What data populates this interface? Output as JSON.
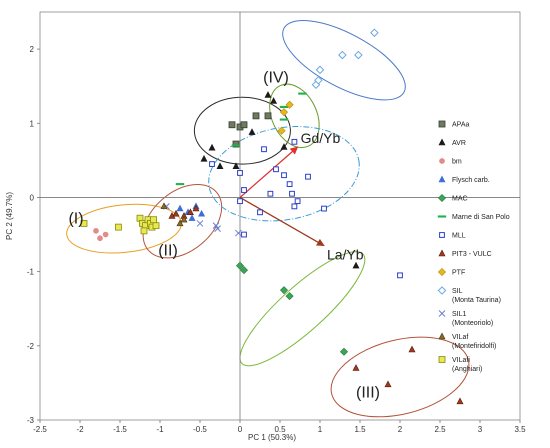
{
  "chart_data": {
    "type": "scatter",
    "xlabel": "PC 1 (50.3%)",
    "ylabel": "PC 2 (49.7%)",
    "xlim": [
      -2.5,
      3.5
    ],
    "ylim": [
      -3,
      2.5
    ],
    "x_ticks": [
      "-2.5",
      "-2",
      "-1.5",
      "-1",
      "-0.5",
      "0",
      "0.5",
      "1",
      "1.5",
      "2",
      "2.5",
      "3",
      "3.5"
    ],
    "y_ticks": [
      "-3",
      "-2",
      "-1",
      "0",
      "1",
      "2"
    ],
    "x_tick_values": [
      -2.5,
      -2,
      -1.5,
      -1,
      -0.5,
      0,
      0.5,
      1,
      1.5,
      2,
      2.5,
      3,
      3.5
    ],
    "y_tick_values": [
      -3,
      -2,
      -1,
      0,
      1,
      2
    ],
    "grid": false,
    "legend_position": "right",
    "series": [
      {
        "name": "APAa",
        "marker": "square",
        "color": "#6b7d5a",
        "edge": "#3a3a3a",
        "points": [
          [
            -0.1,
            0.98
          ],
          [
            0.0,
            0.95
          ],
          [
            0.05,
            0.98
          ],
          [
            -0.05,
            0.72
          ],
          [
            0.2,
            1.1
          ],
          [
            0.35,
            1.1
          ]
        ]
      },
      {
        "name": "AVR",
        "marker": "triangle",
        "color": "#1a1a1a",
        "edge": "#1a1a1a",
        "points": [
          [
            -0.45,
            0.52
          ],
          [
            -0.35,
            0.67
          ],
          [
            -0.25,
            0.42
          ],
          [
            -0.05,
            0.42
          ],
          [
            0.15,
            0.88
          ],
          [
            0.35,
            1.38
          ],
          [
            0.42,
            1.3
          ],
          [
            1.45,
            -0.92
          ],
          [
            0.55,
            0.68
          ]
        ]
      },
      {
        "name": "bm",
        "marker": "circle",
        "color": "#e38a8a",
        "edge": "#e38a8a",
        "points": [
          [
            -1.8,
            -0.45
          ],
          [
            -1.75,
            -0.55
          ],
          [
            -1.68,
            -0.5
          ]
        ]
      },
      {
        "name": "Flysch carb.",
        "marker": "triangle",
        "color": "#3d6fd6",
        "edge": "#3d6fd6",
        "points": [
          [
            -0.75,
            -0.15
          ],
          [
            -0.65,
            -0.2
          ],
          [
            -0.6,
            -0.28
          ],
          [
            -0.55,
            -0.12
          ],
          [
            -0.48,
            -0.22
          ]
        ]
      },
      {
        "name": "MAC",
        "marker": "diamond",
        "color": "#3aa655",
        "edge": "#2d7a40",
        "points": [
          [
            0.0,
            -0.92
          ],
          [
            0.05,
            -0.98
          ],
          [
            0.55,
            -1.25
          ],
          [
            0.62,
            -1.33
          ],
          [
            1.3,
            -2.08
          ]
        ]
      },
      {
        "name": "Marne di San Polo",
        "marker": "dash",
        "color": "#22b24c",
        "edge": "#22b24c",
        "points": [
          [
            -0.75,
            0.18
          ],
          [
            -0.05,
            0.7
          ],
          [
            0.55,
            1.05
          ],
          [
            0.55,
            1.22
          ],
          [
            0.78,
            1.4
          ]
        ]
      },
      {
        "name": "MLL",
        "marker": "open-square",
        "color": "#2b3fc9",
        "edge": "#2b3fc9",
        "points": [
          [
            -0.35,
            0.45
          ],
          [
            0.0,
            0.33
          ],
          [
            0.05,
            0.1
          ],
          [
            0.0,
            -0.05
          ],
          [
            0.3,
            0.65
          ],
          [
            0.45,
            0.38
          ],
          [
            0.55,
            0.3
          ],
          [
            0.62,
            0.18
          ],
          [
            0.38,
            0.05
          ],
          [
            0.65,
            0.05
          ],
          [
            0.72,
            -0.05
          ],
          [
            0.68,
            0.75
          ],
          [
            0.85,
            0.28
          ],
          [
            0.68,
            -0.12
          ],
          [
            0.25,
            -0.2
          ],
          [
            0.05,
            -0.5
          ],
          [
            1.05,
            -0.15
          ],
          [
            2.0,
            -1.05
          ]
        ]
      },
      {
        "name": "PIT3 - VULC",
        "marker": "triangle",
        "color": "#a0391e",
        "edge": "#5a1a0c",
        "points": [
          [
            -0.85,
            -0.25
          ],
          [
            -0.8,
            -0.22
          ],
          [
            -0.7,
            -0.25
          ],
          [
            -0.62,
            -0.2
          ],
          [
            -0.55,
            -0.15
          ],
          [
            1.45,
            -2.3
          ],
          [
            2.15,
            -2.05
          ],
          [
            1.85,
            -2.52
          ],
          [
            2.75,
            -2.75
          ]
        ]
      },
      {
        "name": "PTF",
        "marker": "diamond",
        "color": "#e6b820",
        "edge": "#b88a00",
        "points": [
          [
            0.55,
            1.15
          ],
          [
            0.62,
            1.25
          ],
          [
            0.52,
            0.9
          ]
        ]
      },
      {
        "name": "SIL\n(Monta Taurina)",
        "marker": "open-diamond",
        "color": "#6aa8df",
        "edge": "#6aa8df",
        "points": [
          [
            0.95,
            1.52
          ],
          [
            1.0,
            1.72
          ],
          [
            1.28,
            1.92
          ],
          [
            1.48,
            1.92
          ],
          [
            1.68,
            2.22
          ],
          [
            0.98,
            1.58
          ]
        ]
      },
      {
        "name": "SIL1\n(Monteoriolo)",
        "marker": "x",
        "color": "#6a7fd6",
        "edge": "#6a7fd6",
        "points": [
          [
            -0.3,
            -0.38
          ],
          [
            -0.28,
            -0.42
          ],
          [
            -0.92,
            -0.12
          ],
          [
            -0.5,
            -0.35
          ],
          [
            -0.02,
            -0.48
          ]
        ]
      },
      {
        "name": "VILaf\n(Montefiridolfi)",
        "marker": "triangle",
        "color": "#8a6a2a",
        "edge": "#4a3810",
        "points": [
          [
            -0.95,
            -0.12
          ],
          [
            -0.75,
            -0.35
          ],
          [
            -0.7,
            -0.3
          ]
        ]
      },
      {
        "name": "VILafi\n(Anghiari)",
        "marker": "square",
        "color": "#e8e850",
        "edge": "#8a8a10",
        "points": [
          [
            -1.95,
            -0.35
          ],
          [
            -1.52,
            -0.4
          ],
          [
            -1.25,
            -0.28
          ],
          [
            -1.22,
            -0.35
          ],
          [
            -1.18,
            -0.38
          ],
          [
            -1.15,
            -0.3
          ],
          [
            -1.12,
            -0.35
          ],
          [
            -1.1,
            -0.4
          ],
          [
            -1.05,
            -0.38
          ],
          [
            -1.2,
            -0.45
          ],
          [
            -1.08,
            -0.3
          ]
        ]
      }
    ],
    "vectors": [
      {
        "label": "Gd/Yb",
        "from": [
          0.0,
          0.0
        ],
        "to": [
          0.72,
          0.68
        ],
        "color": "#e03030"
      },
      {
        "label": "La/Yb",
        "from": [
          0.0,
          0.0
        ],
        "to": [
          1.05,
          -0.65
        ],
        "color": "#a0391e"
      }
    ],
    "group_labels": [
      {
        "label": "(I)",
        "at": [
          -2.05,
          -0.35
        ]
      },
      {
        "label": "(II)",
        "at": [
          -0.9,
          -0.78
        ]
      },
      {
        "label": "(III)",
        "at": [
          1.6,
          -2.7
        ]
      },
      {
        "label": "(IV)",
        "at": [
          0.45,
          1.55
        ]
      }
    ],
    "ellipses": [
      {
        "color": "#e8a020",
        "cx": -1.45,
        "cy": -0.42,
        "rx": 0.72,
        "ry": 0.32,
        "angle": -6,
        "dash": false
      },
      {
        "color": "#b5533a",
        "cx": -0.72,
        "cy": -0.32,
        "rx": 0.56,
        "ry": 0.4,
        "angle": -40,
        "dash": false
      },
      {
        "color": "#2a2a2a",
        "cx": 0.03,
        "cy": 0.9,
        "rx": 0.6,
        "ry": 0.45,
        "angle": 0,
        "dash": false
      },
      {
        "color": "#6a9a2a",
        "cx": 0.68,
        "cy": 1.1,
        "rx": 0.28,
        "ry": 0.45,
        "angle": -25,
        "dash": false
      },
      {
        "color": "#4a7ac8",
        "cx": 1.3,
        "cy": 1.85,
        "rx": 0.85,
        "ry": 0.36,
        "angle": 28,
        "dash": false
      },
      {
        "color": "#3a9ad6",
        "cx": 0.55,
        "cy": 0.32,
        "rx": 0.95,
        "ry": 0.62,
        "angle": -10,
        "dash": true
      },
      {
        "color": "#7ab83a",
        "cx": 0.78,
        "cy": -1.5,
        "rx": 1.02,
        "ry": 0.3,
        "angle": -42,
        "dash": false
      },
      {
        "color": "#b5533a",
        "cx": 2.0,
        "cy": -2.42,
        "rx": 0.88,
        "ry": 0.5,
        "angle": -14,
        "dash": false
      }
    ]
  }
}
